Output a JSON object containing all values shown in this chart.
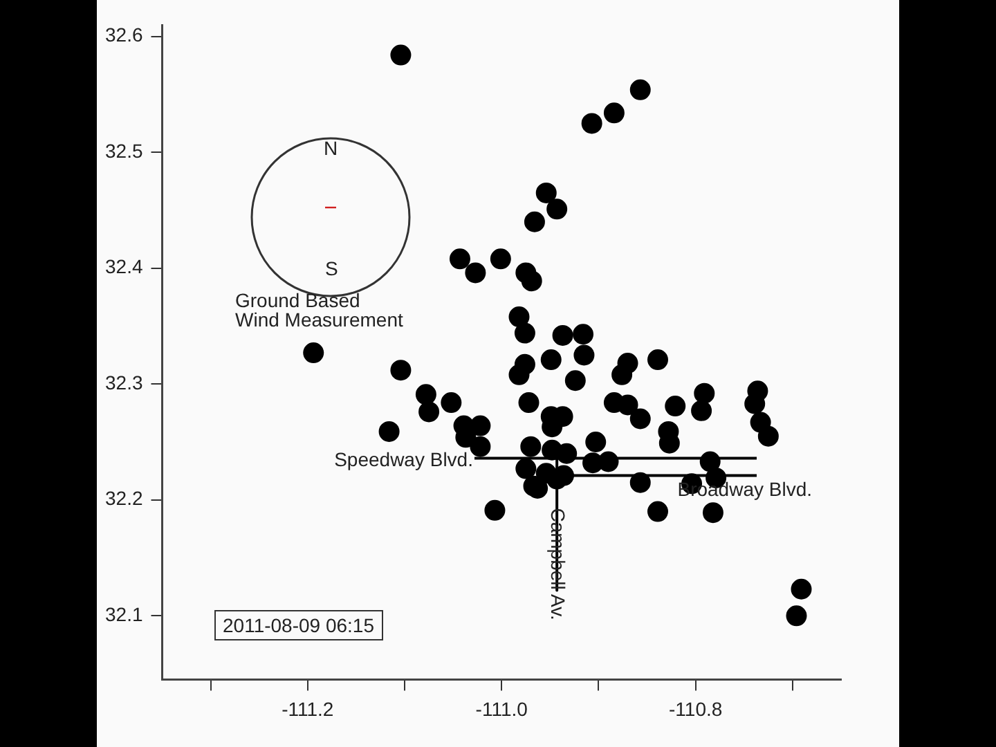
{
  "chart_data": {
    "type": "scatter",
    "xlim": [
      -111.35,
      -110.65
    ],
    "ylim": [
      32.045,
      32.61
    ],
    "xticks": [
      {
        "value": -111.3,
        "label": null
      },
      -111.2,
      {
        "value": -111.1,
        "label": null
      },
      {
        "value": -111.0,
        "label": "-111.0"
      },
      {
        "value": -110.9,
        "label": null
      },
      -110.8,
      {
        "value": -110.7,
        "label": null
      }
    ],
    "yticks": [
      32.1,
      32.2,
      32.3,
      32.4,
      32.5,
      32.6
    ],
    "grid": false,
    "legend": false,
    "marker": "circle",
    "annotations": [
      "N",
      "S",
      "Ground Based\nWind Measurement",
      "2011-08-09 06:15"
    ],
    "series": [
      {
        "color": "#000000",
        "x": [
          -111.104,
          -110.907,
          -110.884,
          -110.857,
          -110.954,
          -110.943,
          -110.966,
          -110.975,
          -110.969,
          -110.982,
          -110.976,
          -111.043,
          -111.027,
          -111.001,
          -111.194,
          -111.104,
          -111.078,
          -111.075,
          -111.052,
          -111.116,
          -111.039,
          -111.022,
          -111.037,
          -111.022,
          -111.007,
          -110.976,
          -110.982,
          -110.972,
          -110.97,
          -110.975,
          -110.967,
          -110.937,
          -110.916,
          -110.915,
          -110.949,
          -110.924,
          -110.87,
          -110.876,
          -110.839,
          -110.884,
          -110.87,
          -110.857,
          -110.821,
          -110.791,
          -110.794,
          -110.736,
          -110.739,
          -110.733,
          -110.725,
          -110.828,
          -110.827,
          -110.949,
          -110.937,
          -110.948,
          -110.903,
          -110.948,
          -110.933,
          -110.906,
          -110.89,
          -110.954,
          -110.936,
          -110.943,
          -110.963,
          -110.857,
          -110.804,
          -110.785,
          -110.779,
          -110.839,
          -110.782,
          -110.691,
          -110.696
        ],
        "values": [
          32.584,
          32.525,
          32.534,
          32.554,
          32.465,
          32.451,
          32.44,
          32.396,
          32.389,
          32.358,
          32.344,
          32.408,
          32.396,
          32.408,
          32.327,
          32.312,
          32.291,
          32.276,
          32.284,
          32.259,
          32.264,
          32.264,
          32.254,
          32.246,
          32.191,
          32.317,
          32.308,
          32.284,
          32.246,
          32.227,
          32.212,
          32.342,
          32.343,
          32.325,
          32.321,
          32.303,
          32.318,
          32.308,
          32.321,
          32.284,
          32.282,
          32.27,
          32.281,
          32.292,
          32.277,
          32.294,
          32.283,
          32.267,
          32.255,
          32.259,
          32.249,
          32.272,
          32.272,
          32.263,
          32.25,
          32.243,
          32.24,
          32.232,
          32.233,
          32.223,
          32.221,
          32.218,
          32.21,
          32.215,
          32.214,
          32.233,
          32.219,
          32.19,
          32.189,
          32.123,
          32.1
        ]
      },
      {
        "type": "line",
        "name": "Speedway Blvd.",
        "color": "#000000",
        "marker": "none",
        "x": [
          -111.028,
          -110.737
        ],
        "values": [
          32.236,
          32.236
        ]
      },
      {
        "type": "line",
        "name": "Broadway Blvd.",
        "color": "#000000",
        "marker": "none",
        "x": [
          -110.948,
          -110.737
        ],
        "values": [
          32.221,
          32.221
        ]
      },
      {
        "type": "line",
        "name": "Campbell Av.",
        "color": "#000000",
        "marker": "none",
        "x": [
          -110.943,
          -110.943
        ],
        "values": [
          32.236,
          32.122
        ]
      }
    ]
  }
}
